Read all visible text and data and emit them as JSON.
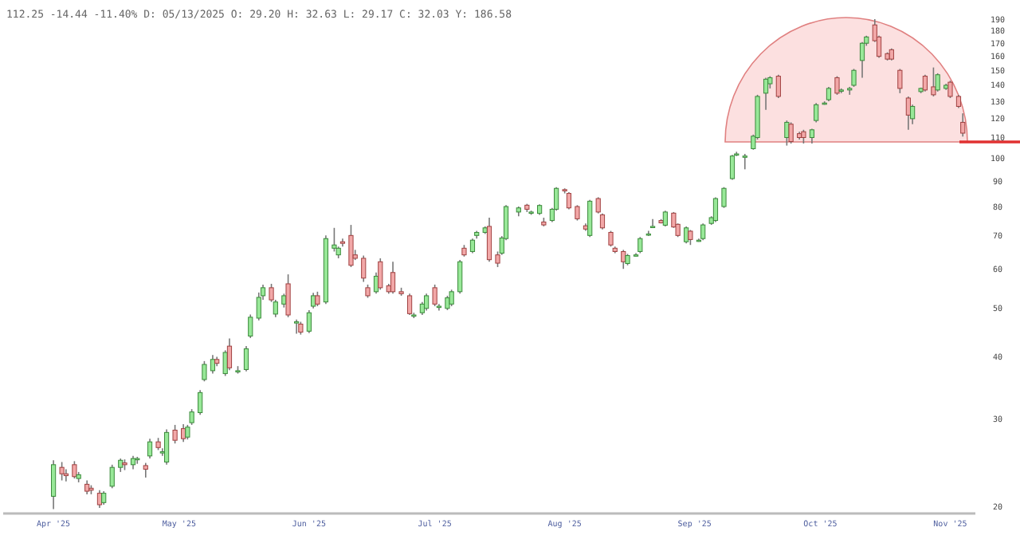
{
  "chart_data": {
    "type": "candlestick",
    "title": "112.25 -14.44 -11.40% D: 05/13/2025 O: 29.20 H: 32.63 L: 29.17 C: 32.03 Y: 186.58",
    "log": true,
    "grid": false,
    "xlim": [
      "2025-03-20",
      "2025-11-07"
    ],
    "xticks": [
      {
        "value": "2025-04-01",
        "label": "Apr '25"
      },
      {
        "value": "2025-05-01",
        "label": "May '25"
      },
      {
        "value": "2025-06-01",
        "label": "Jun '25"
      },
      {
        "value": "2025-07-01",
        "label": "Jul '25"
      },
      {
        "value": "2025-08-01",
        "label": "Aug '25"
      },
      {
        "value": "2025-09-01",
        "label": "Sep '25"
      },
      {
        "value": "2025-10-01",
        "label": "Oct '25"
      },
      {
        "value": "2025-11-01",
        "label": "Nov '25"
      }
    ],
    "ylim": [
      19.4,
      190
    ],
    "yticks": [
      20,
      30,
      40,
      50,
      60,
      70,
      80,
      90,
      100,
      110,
      120,
      130,
      140,
      150,
      160,
      170,
      180,
      190
    ],
    "x": [
      "2025-04-01",
      "2025-04-03",
      "2025-04-04",
      "2025-04-06",
      "2025-04-07",
      "2025-04-09",
      "2025-04-10",
      "2025-04-12",
      "2025-04-13",
      "2025-04-15",
      "2025-04-17",
      "2025-04-18",
      "2025-04-20",
      "2025-04-21",
      "2025-04-23",
      "2025-04-24",
      "2025-04-26",
      "2025-04-27",
      "2025-04-28",
      "2025-04-30",
      "2025-05-02",
      "2025-05-03",
      "2025-05-04",
      "2025-05-06",
      "2025-05-07",
      "2025-05-09",
      "2025-05-10",
      "2025-05-12",
      "2025-05-13",
      "2025-05-15",
      "2025-05-17",
      "2025-05-18",
      "2025-05-20",
      "2025-05-21",
      "2025-05-23",
      "2025-05-24",
      "2025-05-26",
      "2025-05-27",
      "2025-05-29",
      "2025-05-30",
      "2025-06-01",
      "2025-06-02",
      "2025-06-03",
      "2025-06-05",
      "2025-06-07",
      "2025-06-08",
      "2025-06-09",
      "2025-06-11",
      "2025-06-12",
      "2025-06-14",
      "2025-06-15",
      "2025-06-17",
      "2025-06-18",
      "2025-06-20",
      "2025-06-21",
      "2025-06-23",
      "2025-06-25",
      "2025-06-26",
      "2025-06-28",
      "2025-06-29",
      "2025-07-01",
      "2025-07-02",
      "2025-07-04",
      "2025-07-05",
      "2025-07-07",
      "2025-07-08",
      "2025-07-10",
      "2025-07-11",
      "2025-07-13",
      "2025-07-14",
      "2025-07-16",
      "2025-07-17",
      "2025-07-18",
      "2025-07-21",
      "2025-07-23",
      "2025-07-24",
      "2025-07-26",
      "2025-07-27",
      "2025-07-29",
      "2025-07-30",
      "2025-08-01",
      "2025-08-02",
      "2025-08-04",
      "2025-08-06",
      "2025-08-07",
      "2025-08-09",
      "2025-08-10",
      "2025-08-12",
      "2025-08-13",
      "2025-08-15",
      "2025-08-16",
      "2025-08-18",
      "2025-08-19",
      "2025-08-21",
      "2025-08-22",
      "2025-08-24",
      "2025-08-25",
      "2025-08-27",
      "2025-08-28",
      "2025-08-30",
      "2025-08-31",
      "2025-09-02",
      "2025-09-03",
      "2025-09-05",
      "2025-09-06",
      "2025-09-08",
      "2025-09-10",
      "2025-09-11",
      "2025-09-13",
      "2025-09-15",
      "2025-09-16",
      "2025-09-18",
      "2025-09-19",
      "2025-09-21",
      "2025-09-23",
      "2025-09-24",
      "2025-09-26",
      "2025-09-27",
      "2025-09-29",
      "2025-09-30",
      "2025-10-02",
      "2025-10-03",
      "2025-10-05",
      "2025-10-06",
      "2025-10-08",
      "2025-10-09",
      "2025-10-11",
      "2025-10-12",
      "2025-10-14",
      "2025-10-15",
      "2025-10-17",
      "2025-10-18",
      "2025-10-20",
      "2025-10-22",
      "2025-10-23",
      "2025-10-25",
      "2025-10-26",
      "2025-10-28",
      "2025-10-29",
      "2025-10-31",
      "2025-11-01",
      "2025-11-03",
      "2025-11-04"
    ],
    "ohlc": [
      [
        21.0,
        24.8,
        19.8,
        24.3
      ],
      [
        24.0,
        24.6,
        22.6,
        23.3
      ],
      [
        23.3,
        23.8,
        22.5,
        23.1
      ],
      [
        24.3,
        24.7,
        22.8,
        23.0
      ],
      [
        22.8,
        23.5,
        22.4,
        23.2
      ],
      [
        22.2,
        22.6,
        21.2,
        21.5
      ],
      [
        21.8,
        22.1,
        21.2,
        21.6
      ],
      [
        21.3,
        21.6,
        19.9,
        20.2
      ],
      [
        20.4,
        21.5,
        20.2,
        21.3
      ],
      [
        22.0,
        24.3,
        21.8,
        24.0
      ],
      [
        24.0,
        25.0,
        23.5,
        24.8
      ],
      [
        24.5,
        24.9,
        23.7,
        24.3
      ],
      [
        24.3,
        25.3,
        23.8,
        25.0
      ],
      [
        25.0,
        25.2,
        24.4,
        25.0
      ],
      [
        24.2,
        24.5,
        22.9,
        23.8
      ],
      [
        25.3,
        27.4,
        25.0,
        27.0
      ],
      [
        27.0,
        27.5,
        26.0,
        26.3
      ],
      [
        25.8,
        26.2,
        25.3,
        25.8
      ],
      [
        24.6,
        28.6,
        24.3,
        28.2
      ],
      [
        28.5,
        29.2,
        26.8,
        27.2
      ],
      [
        28.7,
        29.3,
        27.0,
        27.4
      ],
      [
        27.6,
        29.2,
        27.3,
        28.9
      ],
      [
        29.5,
        31.4,
        29.2,
        31.0
      ],
      [
        30.9,
        34.3,
        30.6,
        33.9
      ],
      [
        36.0,
        39.2,
        35.7,
        38.6
      ],
      [
        37.5,
        40.3,
        37.0,
        39.5
      ],
      [
        39.5,
        40.0,
        38.3,
        38.8
      ],
      [
        37.0,
        41.2,
        36.6,
        40.8
      ],
      [
        42.0,
        43.5,
        37.6,
        38.0
      ],
      [
        37.5,
        38.3,
        37.0,
        37.5
      ],
      [
        37.7,
        42.0,
        37.4,
        41.5
      ],
      [
        44.0,
        48.6,
        43.6,
        48.0
      ],
      [
        47.8,
        53.8,
        47.3,
        52.6
      ],
      [
        53.0,
        55.8,
        52.0,
        55.0
      ],
      [
        55.0,
        56.0,
        51.5,
        52.0
      ],
      [
        48.7,
        52.0,
        48.0,
        51.5
      ],
      [
        51.0,
        53.5,
        50.2,
        53.0
      ],
      [
        56.0,
        58.5,
        48.0,
        48.5
      ],
      [
        47.0,
        47.5,
        44.5,
        47.0
      ],
      [
        46.5,
        47.0,
        44.3,
        44.8
      ],
      [
        45.0,
        49.6,
        44.6,
        49.0
      ],
      [
        50.5,
        53.7,
        50.0,
        53.0
      ],
      [
        53.0,
        54.0,
        50.5,
        51.0
      ],
      [
        51.5,
        70.0,
        51.0,
        69.0
      ],
      [
        66.0,
        72.5,
        65.0,
        67.0
      ],
      [
        64.0,
        66.5,
        63.0,
        66.0
      ],
      [
        68.0,
        69.0,
        66.5,
        67.5
      ],
      [
        70.0,
        73.5,
        60.5,
        61.0
      ],
      [
        64.0,
        65.5,
        62.5,
        63.0
      ],
      [
        63.0,
        63.8,
        56.5,
        57.5
      ],
      [
        55.0,
        55.8,
        52.5,
        53.0
      ],
      [
        54.0,
        59.0,
        53.5,
        58.0
      ],
      [
        62.0,
        63.0,
        54.5,
        55.0
      ],
      [
        55.5,
        56.0,
        53.5,
        54.0
      ],
      [
        59.0,
        62.0,
        53.5,
        54.0
      ],
      [
        54.0,
        55.0,
        53.0,
        53.5
      ],
      [
        53.0,
        53.5,
        48.5,
        48.8
      ],
      [
        48.5,
        49.0,
        47.8,
        48.5
      ],
      [
        49.0,
        51.5,
        48.5,
        51.0
      ],
      [
        50.0,
        53.5,
        49.5,
        53.0
      ],
      [
        55.0,
        55.8,
        50.5,
        51.0
      ],
      [
        50.5,
        51.0,
        49.5,
        50.5
      ],
      [
        50.0,
        53.0,
        49.6,
        52.5
      ],
      [
        51.0,
        54.5,
        50.5,
        54.0
      ],
      [
        54.0,
        62.5,
        53.5,
        62.0
      ],
      [
        66.0,
        67.0,
        63.5,
        64.0
      ],
      [
        65.0,
        69.0,
        64.5,
        68.5
      ],
      [
        70.0,
        71.5,
        69.0,
        71.0
      ],
      [
        71.0,
        73.0,
        70.5,
        72.5
      ],
      [
        73.0,
        76.0,
        62.0,
        62.6
      ],
      [
        64.0,
        65.0,
        60.5,
        61.6
      ],
      [
        64.5,
        69.8,
        64.0,
        69.2
      ],
      [
        69.0,
        80.5,
        68.5,
        80.0
      ],
      [
        78.0,
        80.0,
        76.5,
        79.5
      ],
      [
        80.5,
        81.0,
        78.0,
        79.0
      ],
      [
        78.0,
        78.5,
        77.0,
        78.0
      ],
      [
        77.5,
        80.8,
        77.0,
        80.4
      ],
      [
        74.5,
        76.0,
        73.0,
        73.5
      ],
      [
        75.0,
        79.5,
        74.5,
        79.0
      ],
      [
        79.0,
        87.5,
        78.5,
        87.0
      ],
      [
        86.5,
        87.0,
        85.0,
        86.0
      ],
      [
        85.0,
        85.5,
        79.0,
        79.5
      ],
      [
        80.0,
        80.5,
        75.0,
        75.6
      ],
      [
        73.2,
        74.0,
        71.5,
        72.1
      ],
      [
        70.0,
        82.5,
        69.5,
        82.0
      ],
      [
        83.0,
        83.5,
        77.5,
        78.0
      ],
      [
        77.0,
        77.5,
        72.0,
        72.5
      ],
      [
        71.0,
        71.5,
        66.5,
        67.0
      ],
      [
        66.0,
        66.5,
        64.5,
        65.0
      ],
      [
        65.0,
        65.5,
        60.0,
        62.0
      ],
      [
        61.5,
        64.3,
        61.0,
        63.8
      ],
      [
        64.0,
        64.5,
        63.5,
        64.0
      ],
      [
        65.0,
        69.5,
        64.5,
        69.0
      ],
      [
        70.5,
        71.5,
        69.8,
        70.5
      ],
      [
        73.0,
        75.5,
        72.5,
        73.0
      ],
      [
        75.0,
        75.5,
        74.0,
        74.2
      ],
      [
        73.4,
        78.5,
        73.0,
        78.0
      ],
      [
        77.6,
        78.0,
        72.5,
        72.8
      ],
      [
        73.7,
        74.0,
        69.5,
        70.0
      ],
      [
        68.0,
        73.0,
        67.5,
        72.5
      ],
      [
        71.4,
        71.8,
        67.0,
        68.7
      ],
      [
        68.5,
        69.0,
        68.0,
        68.5
      ],
      [
        69.0,
        74.0,
        68.5,
        73.5
      ],
      [
        74.0,
        76.5,
        73.5,
        76.0
      ],
      [
        75.0,
        83.5,
        74.5,
        83.0
      ],
      [
        80.0,
        87.5,
        79.5,
        87.0
      ],
      [
        91.0,
        101.5,
        90.5,
        101.0
      ],
      [
        102.0,
        103.0,
        101.0,
        102.0
      ],
      [
        101.0,
        102.0,
        95.0,
        101.0
      ],
      [
        104.5,
        111.5,
        104.0,
        110.7
      ],
      [
        110.0,
        134.0,
        109.0,
        133.0
      ],
      [
        135.0,
        145.0,
        125.0,
        144.0
      ],
      [
        141.0,
        146.0,
        138.0,
        145.0
      ],
      [
        146.0,
        147.0,
        132.0,
        133.0
      ],
      [
        110.0,
        119.0,
        106.0,
        118.0
      ],
      [
        117.0,
        118.0,
        107.0,
        108.0
      ],
      [
        112.0,
        113.0,
        109.0,
        110.0
      ],
      [
        113.0,
        114.0,
        107.0,
        110.0
      ],
      [
        110.0,
        114.5,
        107.0,
        114.0
      ],
      [
        119.0,
        129.0,
        118.0,
        128.0
      ],
      [
        129.0,
        130.0,
        128.0,
        129.0
      ],
      [
        131.0,
        139.0,
        130.0,
        138.0
      ],
      [
        145.0,
        146.0,
        134.0,
        135.0
      ],
      [
        137.0,
        138.0,
        135.0,
        137.0
      ],
      [
        137.0,
        139.0,
        134.0,
        138.0
      ],
      [
        140.0,
        151.0,
        139.0,
        150.0
      ],
      [
        157.0,
        171.0,
        145.0,
        170.0
      ],
      [
        170.0,
        176.0,
        168.0,
        175.0
      ],
      [
        185.0,
        190.0,
        171.0,
        172.0
      ],
      [
        175.0,
        176.0,
        159.0,
        160.0
      ],
      [
        162.0,
        163.0,
        157.0,
        158.0
      ],
      [
        165.0,
        166.0,
        157.0,
        158.0
      ],
      [
        150.0,
        151.0,
        135.0,
        138.0
      ],
      [
        132.0,
        133.0,
        114.0,
        122.0
      ],
      [
        120.0,
        128.0,
        117.0,
        127.0
      ],
      [
        136.0,
        138.5,
        135.0,
        138.0
      ],
      [
        146.0,
        147.0,
        136.0,
        137.0
      ],
      [
        139.0,
        152.0,
        133.0,
        134.0
      ],
      [
        137.0,
        148.0,
        136.0,
        147.0
      ],
      [
        138.0,
        141.0,
        137.0,
        140.0
      ],
      [
        142.0,
        143.0,
        132.0,
        133.0
      ],
      [
        133.0,
        134.0,
        126.0,
        127.0
      ],
      [
        118.0,
        123.0,
        110.5,
        112.25
      ]
    ]
  }
}
